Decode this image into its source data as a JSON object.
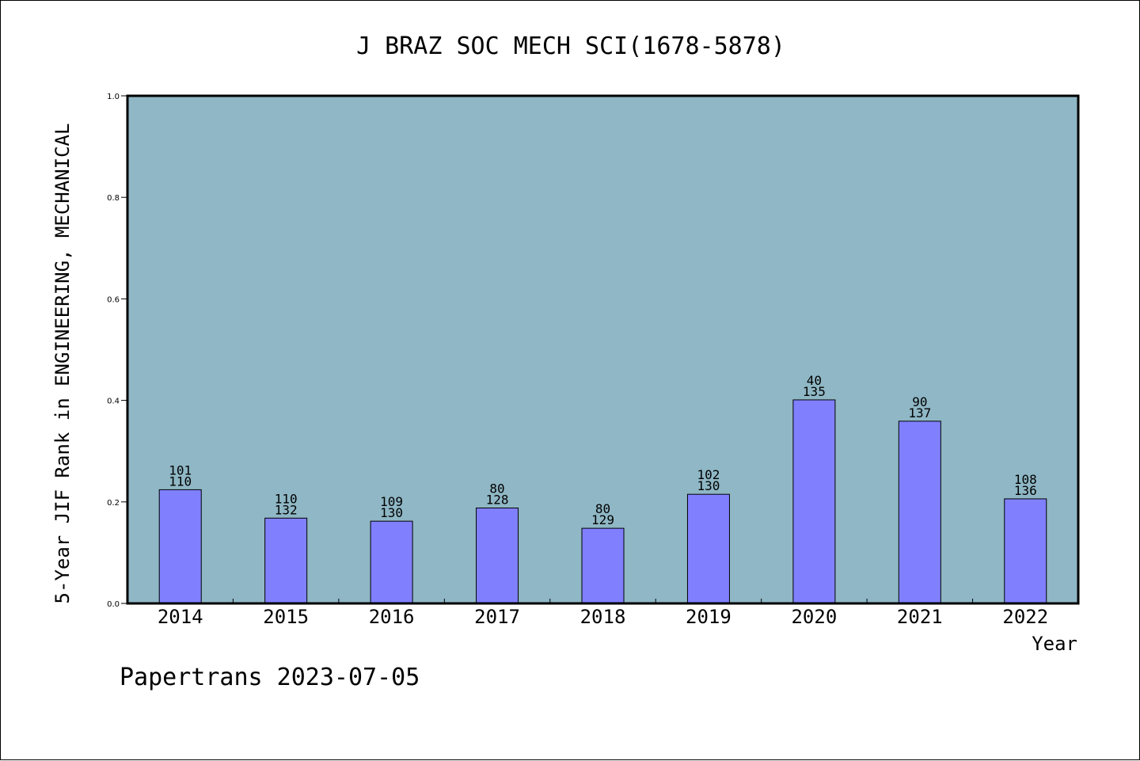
{
  "chart_data": {
    "type": "bar",
    "title": "J BRAZ SOC MECH SCI(1678-5878)",
    "xlabel": "Year",
    "ylabel": "5-Year JIF Rank in ENGINEERING, MECHANICAL",
    "ylim": [
      0,
      1.0
    ],
    "yticks": [
      "0.0",
      "0.2",
      "0.4",
      "0.6",
      "0.8",
      "1.0"
    ],
    "ytick_values": [
      0,
      0.2,
      0.4,
      0.6,
      0.8,
      1.0
    ],
    "categories": [
      "2014",
      "2015",
      "2016",
      "2017",
      "2018",
      "2019",
      "2020",
      "2021",
      "2022"
    ],
    "values": [
      0.224,
      0.168,
      0.162,
      0.188,
      0.148,
      0.215,
      0.401,
      0.359,
      0.206
    ],
    "rank_labels": [
      "101",
      "110",
      "109",
      "80",
      "80",
      "102",
      "40",
      "90",
      "108"
    ],
    "total_labels": [
      "110",
      "132",
      "130",
      "128",
      "129",
      "130",
      "135",
      "137",
      "136"
    ],
    "grid": false,
    "colors": {
      "plot_background": "#8fb7c5",
      "bar_fill": "#8080ff",
      "bar_edge": "#000000"
    }
  },
  "footer": {
    "text": "Papertrans 2023-07-05"
  }
}
